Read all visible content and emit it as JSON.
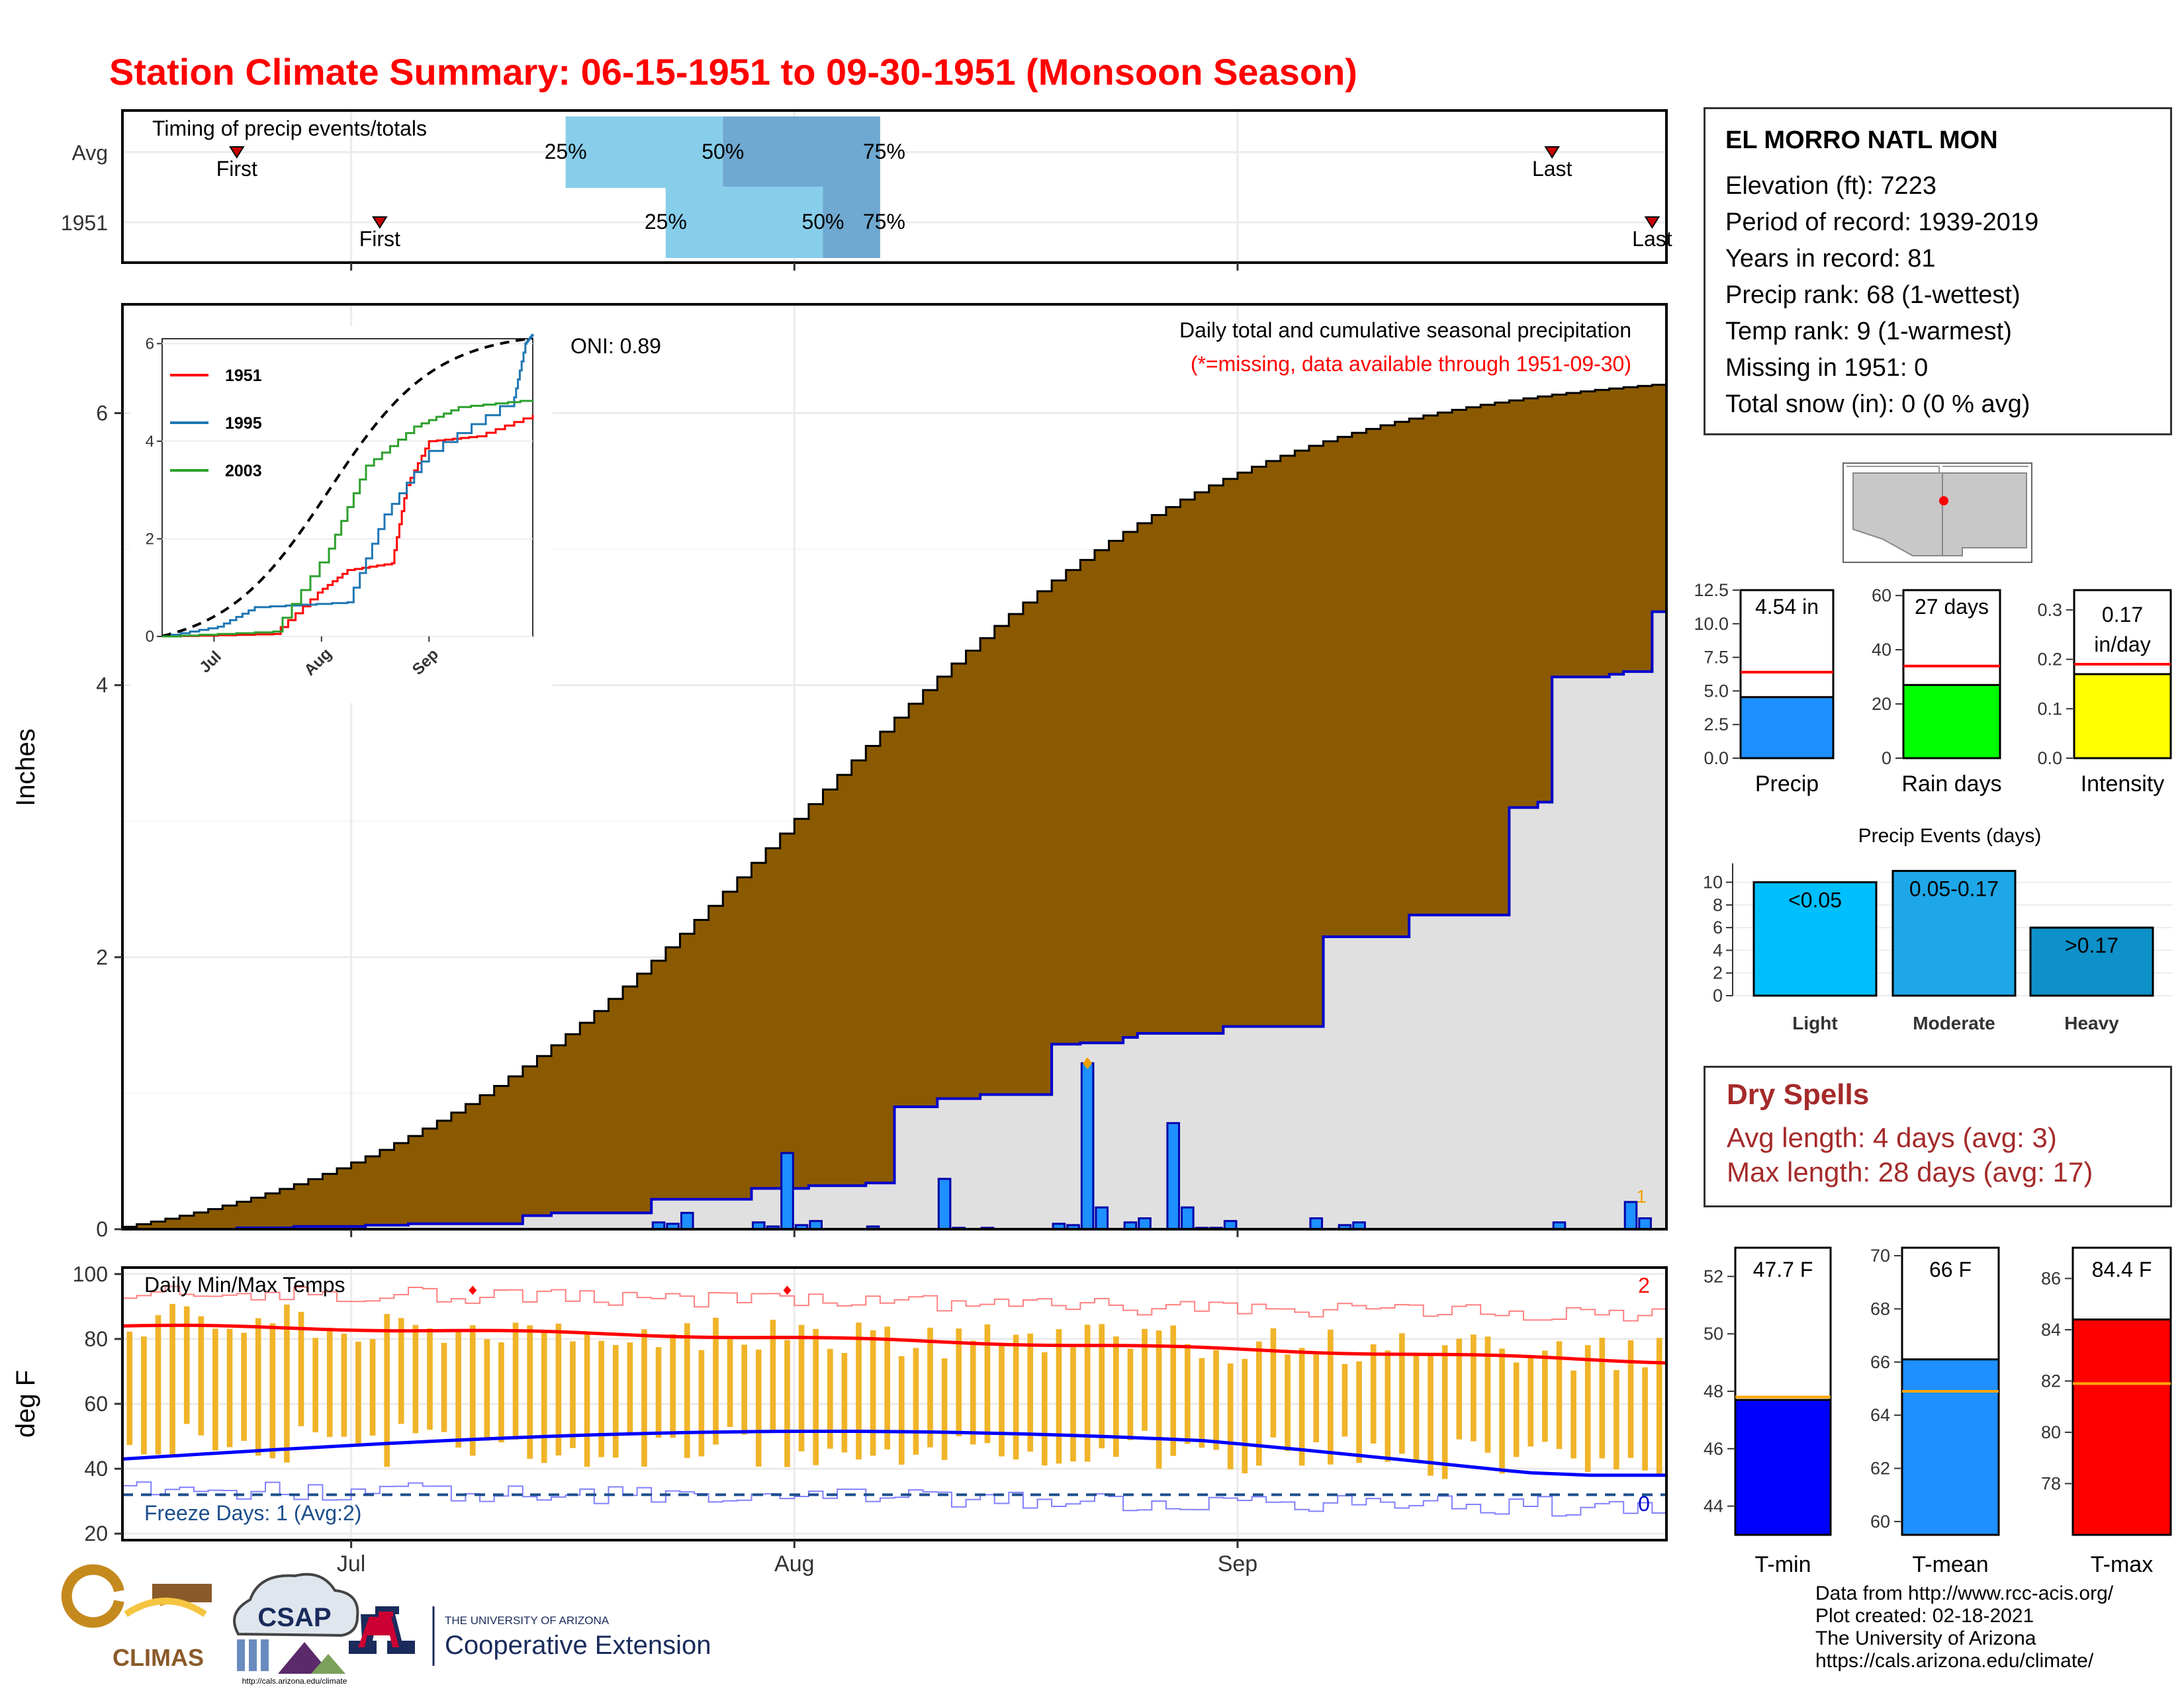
{
  "title": "Station Climate Summary: 06-15-1951 to 09-30-1951 (Monsoon Season)",
  "timing": {
    "label": "Timing of precip events/totals",
    "rows": [
      {
        "label": "Avg",
        "first_date": "06-23",
        "last_date": "09-23",
        "p25": "07-16",
        "p50": "07-27",
        "p75": "08-07",
        "first_label": "First",
        "last_label": "Last"
      },
      {
        "label": "1951",
        "first_date": "07-03",
        "last_date": "09-30",
        "p25": "07-23",
        "p50": "08-03",
        "p75": "08-07",
        "first_label": "First",
        "last_label": "Last"
      }
    ],
    "pct_labels": [
      "25%",
      "50%",
      "75%"
    ]
  },
  "precip_panel": {
    "title": "Daily total and cumulative seasonal precipitation",
    "subtitle": "(*=missing, data available through 1951-09-30)",
    "oni": "ONI: 0.89",
    "ylabel": "Inches",
    "count_label": "1"
  },
  "temp_panel": {
    "label": "Daily Min/Max Temps",
    "ylabel": "deg F",
    "freeze_label": "Freeze Days: 1 (Avg:2)",
    "record_high_count": "2",
    "record_low_count": "0",
    "freeze_line": 32
  },
  "month_labels": [
    "Jul",
    "Aug",
    "Sep"
  ],
  "station": {
    "name": "EL MORRO NATL MON",
    "lines": [
      "Elevation (ft): 7223",
      "Period of record: 1939-2019",
      "Years in record: 81",
      "Precip rank: 68 (1-wettest)",
      "Temp rank: 9 (1-warmest)",
      "Missing in 1951: 0",
      "Total snow (in): 0 (0 % avg)"
    ]
  },
  "mini_bars": [
    {
      "label": "Precip",
      "value_text": "4.54 in",
      "value": 4.54,
      "avg": 6.4,
      "color": "#1e90ff",
      "ticks": [
        "0.0",
        "2.5",
        "5.0",
        "7.5",
        "10.0",
        "12.5"
      ],
      "max": 12.5
    },
    {
      "label": "Rain days",
      "value_text": "27 days",
      "value": 27,
      "avg": 34,
      "color": "#00ff00",
      "ticks": [
        "0",
        "20",
        "40",
        "60"
      ],
      "max": 62
    },
    {
      "label": "Intensity",
      "value_text": "0.17 in/day",
      "value_line1": "0.17",
      "value_line2": "in/day",
      "value": 0.17,
      "avg": 0.19,
      "color": "#ffff00",
      "ticks": [
        "0.0",
        "0.1",
        "0.2",
        "0.3"
      ],
      "max": 0.34
    }
  ],
  "precip_events": {
    "title": "Precip Events (days)",
    "categories": [
      "Light",
      "Moderate",
      "Heavy"
    ],
    "bar_labels": [
      "<0.05",
      "0.05-0.17",
      ">0.17"
    ],
    "values": [
      10,
      11,
      6
    ],
    "colors": [
      "#00bfff",
      "#1ea7e8",
      "#0e90c8"
    ],
    "ticks": [
      "0",
      "2",
      "4",
      "6",
      "8",
      "10"
    ]
  },
  "dry_spells": {
    "title": "Dry Spells",
    "lines": [
      "Avg length: 4 days (avg: 3)",
      "Max length: 28 days (avg: 17)"
    ]
  },
  "temp_bars": [
    {
      "label": "T-min",
      "value_text": "47.7 F",
      "value": 47.7,
      "avg": 47.8,
      "color": "#0000ff",
      "ticks": [
        "44",
        "46",
        "48",
        "50",
        "52"
      ],
      "min": 43,
      "max": 53
    },
    {
      "label": "T-mean",
      "value_text": "66 F",
      "value": 66.1,
      "avg": 64.9,
      "color": "#1e90ff",
      "ticks": [
        "60",
        "62",
        "64",
        "66",
        "68",
        "70"
      ],
      "min": 59.5,
      "max": 70.3
    },
    {
      "label": "T-max",
      "value_text": "84.4 F",
      "value": 84.4,
      "avg": 81.9,
      "color": "#ff0000",
      "ticks": [
        "78",
        "80",
        "82",
        "84",
        "86"
      ],
      "min": 76,
      "max": 87.2
    }
  ],
  "credits": [
    "Data from http://www.rcc-acis.org/",
    "Plot created: 02-18-2021",
    "The University of Arizona",
    "https://cals.arizona.edu/climate/"
  ],
  "logos": {
    "climas": "CLIMAS",
    "csap": "CSAP",
    "csap_url": "http://cals.arizona.edu/climate",
    "ua_top": "THE UNIVERSITY OF ARIZONA",
    "ua_bottom": "Cooperative Extension"
  },
  "colors": {
    "title": "#ff0000",
    "cumulative_avg": "#8b5a00",
    "cumulative_obs": "#e0e0e0",
    "daily_bar": "#1e90ff",
    "temp_bar": "#f0b429",
    "avg_max": "#ff0000",
    "avg_min": "#0000ff"
  },
  "chart_data": [
    {
      "type": "area",
      "title": "Daily total and cumulative seasonal precipitation",
      "ylabel": "Inches",
      "ylim": [
        0,
        6.8
      ],
      "x_dates": [
        "06-15",
        "09-30"
      ],
      "cumulative_avg_end": 6.2,
      "cumulative_1951": {
        "days": [
          0,
          8,
          12,
          17,
          20,
          28,
          30,
          37,
          44,
          48,
          52,
          54,
          57,
          60,
          65,
          67,
          70,
          71,
          77,
          84,
          90,
          97,
          99,
          100,
          104,
          105,
          107
        ],
        "values": [
          0,
          0.01,
          0.02,
          0.03,
          0.04,
          0.1,
          0.12,
          0.22,
          0.3,
          0.32,
          0.34,
          0.9,
          0.96,
          0.99,
          1.36,
          1.37,
          1.41,
          1.44,
          1.49,
          2.15,
          2.31,
          3.1,
          3.14,
          4.06,
          4.08,
          4.1,
          4.54
        ]
      },
      "daily_precip": {
        "days": [
          37,
          38,
          39,
          44,
          45,
          46,
          47,
          48,
          52,
          57,
          58,
          60,
          65,
          66,
          67,
          68,
          70,
          71,
          73,
          74,
          75,
          76,
          77,
          83,
          85,
          86,
          100,
          105,
          106
        ],
        "values": [
          0.05,
          0.04,
          0.12,
          0.05,
          0.02,
          0.56,
          0.03,
          0.06,
          0.02,
          0.37,
          0.01,
          0.01,
          0.04,
          0.03,
          1.22,
          0.16,
          0.05,
          0.08,
          0.78,
          0.16,
          0.01,
          0.01,
          0.06,
          0.08,
          0.03,
          0.05,
          0.05,
          0.2,
          0.08
        ]
      },
      "inset": {
        "series": [
          {
            "name": "1951",
            "color": "#ff0000"
          },
          {
            "name": "1995",
            "color": "#1f77b4"
          },
          {
            "name": "2003",
            "color": "#2ca02c"
          }
        ],
        "ylim": [
          0,
          6.1
        ],
        "yticks": [
          "0",
          "2",
          "4",
          "6"
        ],
        "xticks": [
          "Jul",
          "Aug",
          "Sep"
        ]
      }
    },
    {
      "type": "bar",
      "title": "Daily Min/Max Temps",
      "ylabel": "deg F",
      "ylim": [
        18,
        102
      ],
      "yticks": [
        20,
        40,
        60,
        80,
        100
      ],
      "avg_max_start": 84,
      "avg_max_end": 73,
      "avg_min_start": 43,
      "avg_min_end": 38,
      "freeze_line": 32
    }
  ]
}
